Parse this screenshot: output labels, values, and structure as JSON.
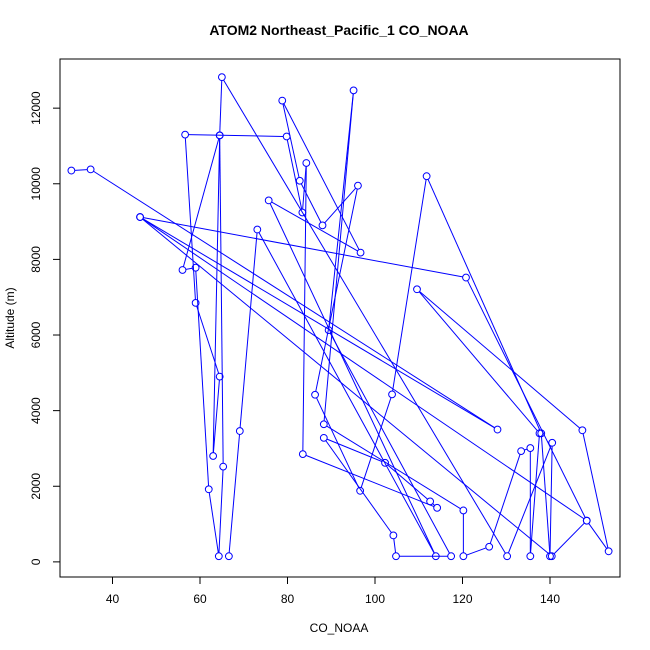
{
  "chart_data": {
    "type": "scatter",
    "title": "ATOM2 Northeast_Pacific_1 CO_NOAA",
    "xlabel": "CO_NOAA",
    "ylabel": "Altitude (m)",
    "xlim": [
      28,
      156
    ],
    "ylim": [
      -400,
      13300
    ],
    "xticks": [
      40,
      60,
      80,
      100,
      120,
      140
    ],
    "yticks": [
      0,
      2000,
      4000,
      6000,
      8000,
      10000,
      12000
    ],
    "grid": false,
    "legend": "none",
    "series_color": "#0000ff",
    "marker": "open-circle",
    "connect_points": true,
    "points": [
      {
        "x": 30.6,
        "y": 10350
      },
      {
        "x": 35.0,
        "y": 10380
      },
      {
        "x": 128.0,
        "y": 3500
      },
      {
        "x": 46.3,
        "y": 9120
      },
      {
        "x": 140.4,
        "y": 150
      },
      {
        "x": 148.4,
        "y": 1090
      },
      {
        "x": 46.3,
        "y": 9120
      },
      {
        "x": 120.8,
        "y": 7520
      },
      {
        "x": 148.4,
        "y": 1090
      },
      {
        "x": 153.4,
        "y": 280
      },
      {
        "x": 147.4,
        "y": 3480
      },
      {
        "x": 109.6,
        "y": 7210
      },
      {
        "x": 137.6,
        "y": 3400
      },
      {
        "x": 135.5,
        "y": 150
      },
      {
        "x": 135.5,
        "y": 3010
      },
      {
        "x": 133.4,
        "y": 2930
      },
      {
        "x": 126.1,
        "y": 400
      },
      {
        "x": 120.2,
        "y": 150
      },
      {
        "x": 120.2,
        "y": 1360
      },
      {
        "x": 88.3,
        "y": 3640
      },
      {
        "x": 95.1,
        "y": 12470
      },
      {
        "x": 89.4,
        "y": 6130
      },
      {
        "x": 117.4,
        "y": 150
      },
      {
        "x": 104.8,
        "y": 150
      },
      {
        "x": 104.2,
        "y": 700
      },
      {
        "x": 88.3,
        "y": 3280
      },
      {
        "x": 102.3,
        "y": 2620
      },
      {
        "x": 112.6,
        "y": 1600
      },
      {
        "x": 114.2,
        "y": 1430
      },
      {
        "x": 83.5,
        "y": 2850
      },
      {
        "x": 84.3,
        "y": 10550
      },
      {
        "x": 83.4,
        "y": 9240
      },
      {
        "x": 79.8,
        "y": 11250
      },
      {
        "x": 56.6,
        "y": 11300
      },
      {
        "x": 59.0,
        "y": 6850
      },
      {
        "x": 64.5,
        "y": 4900
      },
      {
        "x": 63.0,
        "y": 2800
      },
      {
        "x": 64.5,
        "y": 11280
      },
      {
        "x": 56.0,
        "y": 7720
      },
      {
        "x": 59.0,
        "y": 7780
      },
      {
        "x": 62.0,
        "y": 1920
      },
      {
        "x": 64.3,
        "y": 150
      },
      {
        "x": 65.3,
        "y": 2520
      },
      {
        "x": 64.5,
        "y": 11280
      },
      {
        "x": 65.0,
        "y": 12820
      },
      {
        "x": 130.2,
        "y": 150
      },
      {
        "x": 140.5,
        "y": 3150
      },
      {
        "x": 140.0,
        "y": 150
      },
      {
        "x": 138.0,
        "y": 3400
      },
      {
        "x": 111.8,
        "y": 10200
      },
      {
        "x": 103.9,
        "y": 4430
      },
      {
        "x": 96.6,
        "y": 1880
      },
      {
        "x": 86.3,
        "y": 4420
      },
      {
        "x": 96.1,
        "y": 9950
      },
      {
        "x": 88.0,
        "y": 8900
      },
      {
        "x": 82.8,
        "y": 10080
      },
      {
        "x": 78.8,
        "y": 12200
      },
      {
        "x": 96.7,
        "y": 8180
      },
      {
        "x": 75.7,
        "y": 9560
      },
      {
        "x": 113.9,
        "y": 150
      },
      {
        "x": 73.1,
        "y": 8790
      },
      {
        "x": 69.1,
        "y": 3460
      },
      {
        "x": 66.6,
        "y": 150
      }
    ]
  }
}
